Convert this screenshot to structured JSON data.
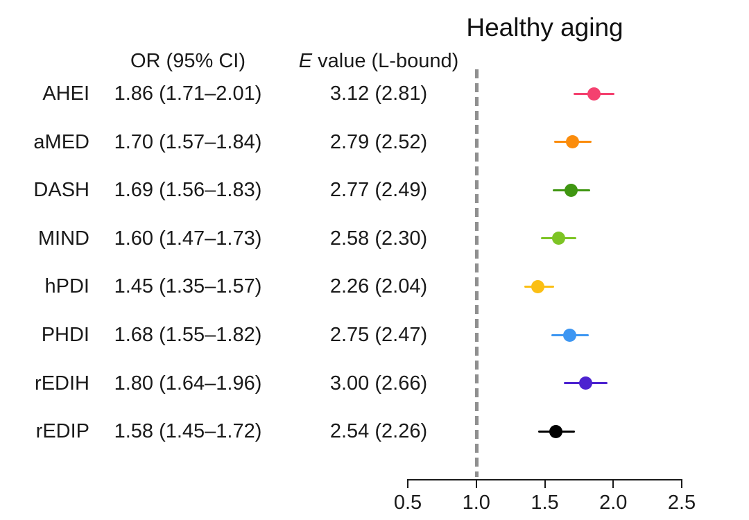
{
  "title": "Healthy aging",
  "columns": {
    "or_header": "OR (95% CI)",
    "evalue_header_italic": "E",
    "evalue_header_rest": " value (L-bound)"
  },
  "chart_data": {
    "type": "scatter",
    "subtype": "forest-plot",
    "title": "Healthy aging",
    "xlabel": "",
    "ylabel": "",
    "xlim": [
      0.5,
      2.5
    ],
    "x_ticks": [
      0.5,
      1.0,
      1.5,
      2.0,
      2.5
    ],
    "x_tick_labels": [
      "0.5",
      "1.0",
      "1.5",
      "2.0",
      "2.5"
    ],
    "reference_line_x": 1.0,
    "reference_line_color": "#8f8f8f",
    "grid": false,
    "legend": false,
    "column_headers": [
      "OR (95% CI)",
      "E value (L-bound)"
    ],
    "rows": [
      {
        "label": "AHEI",
        "or": 1.86,
        "ci_low": 1.71,
        "ci_high": 2.01,
        "or_text": "1.86 (1.71–2.01)",
        "evalue_text": "3.12 (2.81)",
        "color": "#F4416F"
      },
      {
        "label": "aMED",
        "or": 1.7,
        "ci_low": 1.57,
        "ci_high": 1.84,
        "or_text": "1.70 (1.57–1.84)",
        "evalue_text": "2.79 (2.52)",
        "color": "#FB8C0B"
      },
      {
        "label": "DASH",
        "or": 1.69,
        "ci_low": 1.56,
        "ci_high": 1.83,
        "or_text": "1.69 (1.56–1.83)",
        "evalue_text": "2.77 (2.49)",
        "color": "#3F9611"
      },
      {
        "label": "MIND",
        "or": 1.6,
        "ci_low": 1.47,
        "ci_high": 1.73,
        "or_text": "1.60 (1.47–1.73)",
        "evalue_text": "2.58 (2.30)",
        "color": "#7DC424"
      },
      {
        "label": "hPDI",
        "or": 1.45,
        "ci_low": 1.35,
        "ci_high": 1.57,
        "or_text": "1.45 (1.35–1.57)",
        "evalue_text": "2.26 (2.04)",
        "color": "#FBBF14"
      },
      {
        "label": "PHDI",
        "or": 1.68,
        "ci_low": 1.55,
        "ci_high": 1.82,
        "or_text": "1.68 (1.55–1.82)",
        "evalue_text": "2.75 (2.47)",
        "color": "#3D96F2"
      },
      {
        "label": "rEDIH",
        "or": 1.8,
        "ci_low": 1.64,
        "ci_high": 1.96,
        "or_text": "1.80 (1.64–1.96)",
        "evalue_text": "3.00 (2.66)",
        "color": "#4C22D0"
      },
      {
        "label": "rEDIP",
        "or": 1.58,
        "ci_low": 1.45,
        "ci_high": 1.72,
        "or_text": "1.58 (1.45–1.72)",
        "evalue_text": "2.54 (2.26)",
        "color": "#000000"
      }
    ]
  }
}
